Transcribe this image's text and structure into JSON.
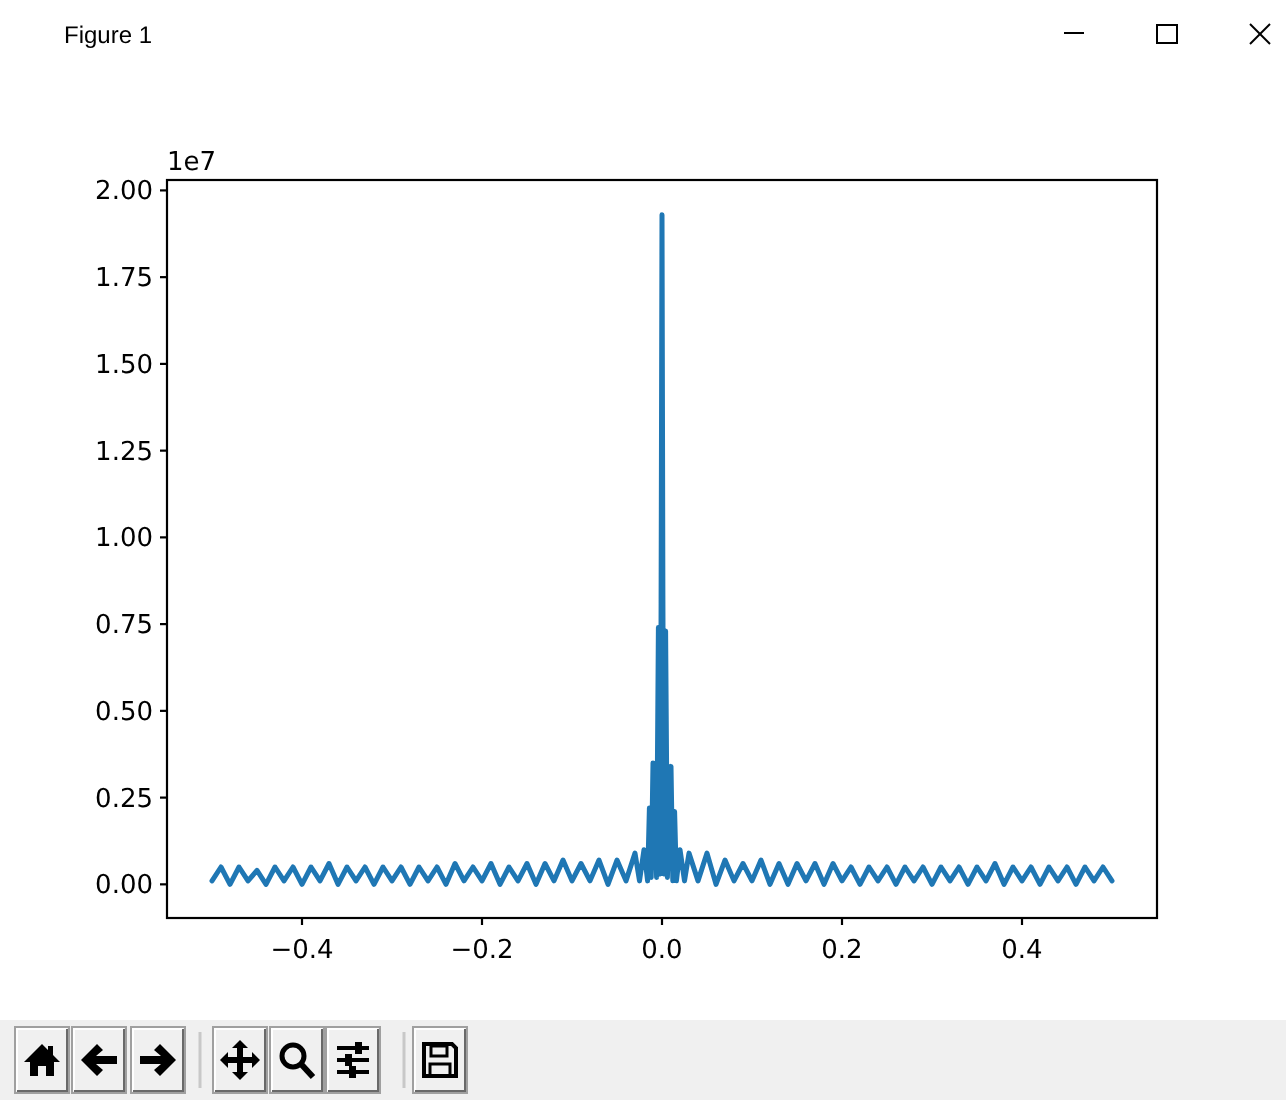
{
  "chart_data": {
    "type": "line",
    "title": "Figure 1",
    "annotations": [
      "1e7"
    ],
    "x": [
      -0.5,
      -0.49,
      -0.48,
      -0.47,
      -0.46,
      -0.45,
      -0.44,
      -0.43,
      -0.42,
      -0.41,
      -0.4,
      -0.39,
      -0.38,
      -0.37,
      -0.36,
      -0.35,
      -0.34,
      -0.33,
      -0.32,
      -0.31,
      -0.3,
      -0.29,
      -0.28,
      -0.27,
      -0.26,
      -0.25,
      -0.24,
      -0.23,
      -0.22,
      -0.21,
      -0.2,
      -0.19,
      -0.18,
      -0.17,
      -0.16,
      -0.15,
      -0.14,
      -0.13,
      -0.12,
      -0.11,
      -0.1,
      -0.09,
      -0.08,
      -0.07,
      -0.06,
      -0.05,
      -0.04,
      -0.03,
      -0.025,
      -0.02,
      -0.016,
      -0.014,
      -0.012,
      -0.01,
      -0.006,
      -0.004,
      -0.002,
      -0.001,
      0,
      0.001,
      0.002,
      0.004,
      0.006,
      0.01,
      0.012,
      0.014,
      0.016,
      0.02,
      0.025,
      0.03,
      0.04,
      0.05,
      0.06,
      0.07,
      0.08,
      0.09,
      0.1,
      0.11,
      0.12,
      0.13,
      0.14,
      0.15,
      0.16,
      0.17,
      0.18,
      0.19,
      0.2,
      0.21,
      0.22,
      0.23,
      0.24,
      0.25,
      0.26,
      0.27,
      0.28,
      0.29,
      0.3,
      0.31,
      0.32,
      0.33,
      0.34,
      0.35,
      0.36,
      0.37,
      0.38,
      0.39,
      0.4,
      0.41,
      0.42,
      0.43,
      0.44,
      0.45,
      0.46,
      0.47,
      0.48,
      0.49,
      0.5
    ],
    "values": [
      0.01,
      0.05,
      0,
      0.05,
      0.01,
      0.04,
      0,
      0.05,
      0.01,
      0.05,
      0,
      0.05,
      0.01,
      0.06,
      0,
      0.05,
      0.01,
      0.05,
      0,
      0.05,
      0.01,
      0.05,
      0,
      0.05,
      0.01,
      0.05,
      0,
      0.06,
      0.01,
      0.05,
      0.01,
      0.06,
      0,
      0.05,
      0.01,
      0.06,
      0,
      0.06,
      0.01,
      0.07,
      0.01,
      0.06,
      0.01,
      0.07,
      0,
      0.07,
      0.01,
      0.09,
      0.01,
      0.1,
      0.01,
      0.22,
      0.02,
      0.35,
      0.02,
      0.74,
      0.03,
      0.81,
      1.93,
      0.82,
      0.03,
      0.73,
      0.02,
      0.34,
      0.01,
      0.21,
      0.01,
      0.1,
      0.01,
      0.09,
      0.01,
      0.09,
      0,
      0.07,
      0.01,
      0.06,
      0.01,
      0.07,
      0,
      0.06,
      0,
      0.06,
      0.01,
      0.06,
      0,
      0.06,
      0.01,
      0.05,
      0,
      0.05,
      0.01,
      0.05,
      0,
      0.05,
      0.01,
      0.05,
      0,
      0.05,
      0.01,
      0.05,
      0,
      0.05,
      0.01,
      0.06,
      0,
      0.05,
      0.01,
      0.05,
      0,
      0.05,
      0.01,
      0.05,
      0,
      0.05,
      0.01,
      0.05,
      0.01
    ],
    "color": "#1f77b4",
    "xlim": [
      -0.55,
      0.55
    ],
    "xticks": [
      {
        "value": -0.4,
        "label": "−0.4"
      },
      {
        "value": -0.2,
        "label": "−0.2"
      },
      {
        "value": 0,
        "label": "0.0"
      },
      {
        "value": 0.2,
        "label": "0.2"
      },
      {
        "value": 0.4,
        "label": "0.4"
      }
    ],
    "ylim": [
      -0.097,
      2.03
    ],
    "yticks": [
      {
        "value": 0,
        "label": "0.00"
      },
      {
        "value": 0.25,
        "label": "0.25"
      },
      {
        "value": 0.5,
        "label": "0.50"
      },
      {
        "value": 0.75,
        "label": "0.75"
      },
      {
        "value": 1,
        "label": "1.00"
      },
      {
        "value": 1.25,
        "label": "1.25"
      },
      {
        "value": 1.5,
        "label": "1.50"
      },
      {
        "value": 1.75,
        "label": "1.75"
      },
      {
        "value": 2,
        "label": "2.00"
      }
    ]
  }
}
